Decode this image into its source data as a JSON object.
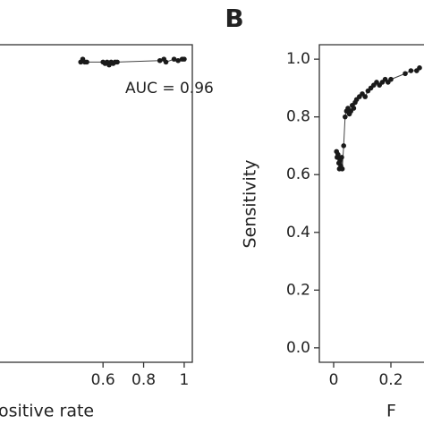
{
  "chart_data": [
    {
      "type": "scatter",
      "xlabel": "ositive rate",
      "annotation": "AUC = 0.96",
      "color": "#1a1a1a",
      "line": true,
      "x": [
        0.49,
        0.5,
        0.51,
        0.52,
        0.6,
        0.61,
        0.62,
        0.63,
        0.64,
        0.65,
        0.66,
        0.67,
        0.88,
        0.9,
        0.91,
        0.95,
        0.97,
        0.99,
        1.0
      ],
      "values": [
        0.99,
        1.0,
        0.99,
        0.99,
        0.99,
        0.985,
        0.99,
        0.98,
        0.99,
        0.985,
        0.99,
        0.99,
        0.995,
        1.0,
        0.99,
        1.0,
        0.995,
        1.0,
        1.0
      ],
      "xlim": [
        -0.04,
        1.04
      ],
      "ylim": [
        -0.05,
        1.05
      ],
      "xticks": [
        0.6,
        0.8,
        1
      ]
    },
    {
      "type": "scatter",
      "panel_label": "B",
      "ylabel": "Sensitivity",
      "xlabel": "F",
      "color": "#1a1a1a",
      "line": true,
      "x": [
        0.01,
        0.012,
        0.015,
        0.018,
        0.02,
        0.022,
        0.025,
        0.028,
        0.03,
        0.035,
        0.04,
        0.045,
        0.05,
        0.055,
        0.06,
        0.065,
        0.07,
        0.075,
        0.08,
        0.09,
        0.1,
        0.11,
        0.12,
        0.13,
        0.14,
        0.15,
        0.16,
        0.17,
        0.18,
        0.19,
        0.2,
        0.25,
        0.27,
        0.29,
        0.3
      ],
      "values": [
        0.68,
        0.66,
        0.67,
        0.64,
        0.62,
        0.65,
        0.63,
        0.66,
        0.62,
        0.7,
        0.8,
        0.82,
        0.83,
        0.81,
        0.82,
        0.84,
        0.83,
        0.85,
        0.86,
        0.87,
        0.88,
        0.87,
        0.89,
        0.9,
        0.91,
        0.92,
        0.91,
        0.92,
        0.93,
        0.92,
        0.93,
        0.95,
        0.96,
        0.96,
        0.97
      ],
      "xlim": [
        -0.05,
        1.05
      ],
      "ylim": [
        -0.05,
        1.05
      ],
      "xticks": [
        0,
        0.2
      ],
      "yticks": [
        {
          "value": 0,
          "label": "0.0"
        },
        0.2,
        0.4,
        0.6,
        0.8,
        {
          "value": 1,
          "label": "1.0"
        }
      ]
    }
  ]
}
